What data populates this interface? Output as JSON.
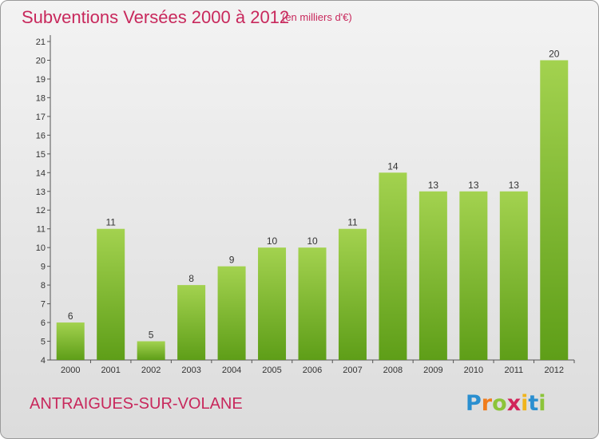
{
  "header": {
    "title": "Subventions Versées 2000 à 2012",
    "subtitle": "(en milliers d'€)"
  },
  "footer": {
    "commune": "ANTRAIGUES-SUR-VOLANE",
    "logo_letters": [
      "P",
      "r",
      "o",
      "x",
      "i",
      "t",
      "i"
    ],
    "logo_colors": [
      "#2a8fd0",
      "#f07c1c",
      "#8cc43a",
      "#d1245a",
      "#f0b41c",
      "#2a8fd0",
      "#8cc43a"
    ]
  },
  "chart_data": {
    "type": "bar",
    "title": "Subventions Versées 2000 à 2012",
    "subtitle": "(en milliers d'€)",
    "categories": [
      "2000",
      "2001",
      "2002",
      "2003",
      "2004",
      "2005",
      "2006",
      "2007",
      "2008",
      "2009",
      "2010",
      "2011",
      "2012"
    ],
    "values": [
      6,
      11,
      5,
      8,
      9,
      10,
      10,
      11,
      14,
      13,
      13,
      13,
      20
    ],
    "ylim": [
      4,
      21
    ],
    "yticks": [
      4,
      5,
      6,
      7,
      8,
      9,
      10,
      11,
      12,
      13,
      14,
      15,
      16,
      17,
      18,
      19,
      20,
      21
    ],
    "grid": false,
    "bar_color_top": "#a3d24f",
    "bar_color_bottom": "#5e9e18",
    "title_color": "#c8285c"
  }
}
